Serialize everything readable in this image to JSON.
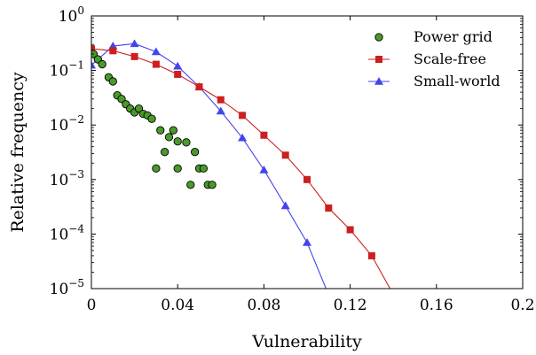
{
  "chart_data": {
    "type": "scatter",
    "title": "",
    "xlabel": "Vulnerability",
    "ylabel": "Relative frequency",
    "xlim": [
      0,
      0.2
    ],
    "ylim": [
      1e-05,
      1
    ],
    "yscale": "log",
    "grid": false,
    "legend_position": "top-right",
    "x_ticks": [
      {
        "value": 0,
        "label": "0"
      },
      {
        "value": 0.04,
        "label": "0.04"
      },
      {
        "value": 0.08,
        "label": "0.08"
      },
      {
        "value": 0.12,
        "label": "0.12"
      },
      {
        "value": 0.16,
        "label": "0.16"
      },
      {
        "value": 0.2,
        "label": "0.2"
      }
    ],
    "y_ticks": [
      {
        "value": 1e-05,
        "base": "10",
        "exp": "−5"
      },
      {
        "value": 0.0001,
        "base": "10",
        "exp": "−4"
      },
      {
        "value": 0.001,
        "base": "10",
        "exp": "−3"
      },
      {
        "value": 0.01,
        "base": "10",
        "exp": "−2"
      },
      {
        "value": 0.1,
        "base": "10",
        "exp": "−1"
      },
      {
        "value": 1,
        "base": "10",
        "exp": "0"
      }
    ],
    "series": [
      {
        "name": "Power grid",
        "style": "markers",
        "marker": "circle",
        "color": "#4a9a2a",
        "stroke": "#000000",
        "points": [
          [
            0.001,
            0.2
          ],
          [
            0.003,
            0.16
          ],
          [
            0.005,
            0.13
          ],
          [
            0.008,
            0.075
          ],
          [
            0.01,
            0.063
          ],
          [
            0.012,
            0.035
          ],
          [
            0.014,
            0.03
          ],
          [
            0.016,
            0.024
          ],
          [
            0.018,
            0.02
          ],
          [
            0.02,
            0.017
          ],
          [
            0.022,
            0.02
          ],
          [
            0.024,
            0.016
          ],
          [
            0.026,
            0.015
          ],
          [
            0.028,
            0.013
          ],
          [
            0.03,
            0.0016
          ],
          [
            0.032,
            0.008
          ],
          [
            0.034,
            0.0032
          ],
          [
            0.036,
            0.006
          ],
          [
            0.038,
            0.008
          ],
          [
            0.04,
            0.005
          ],
          [
            0.04,
            0.0016
          ],
          [
            0.044,
            0.0048
          ],
          [
            0.046,
            0.0008
          ],
          [
            0.048,
            0.0032
          ],
          [
            0.05,
            0.0016
          ],
          [
            0.052,
            0.0016
          ],
          [
            0.054,
            0.0008
          ],
          [
            0.056,
            0.0008
          ]
        ]
      },
      {
        "name": "Scale-free",
        "style": "line+markers",
        "marker": "square",
        "color": "#cc1f1f",
        "points": [
          [
            0,
            0.25
          ],
          [
            0.01,
            0.23
          ],
          [
            0.02,
            0.18
          ],
          [
            0.03,
            0.13
          ],
          [
            0.04,
            0.085
          ],
          [
            0.05,
            0.05
          ],
          [
            0.06,
            0.029
          ],
          [
            0.07,
            0.015
          ],
          [
            0.08,
            0.0065
          ],
          [
            0.09,
            0.0028
          ],
          [
            0.1,
            0.001
          ],
          [
            0.11,
            0.0003
          ],
          [
            0.12,
            0.00012
          ],
          [
            0.13,
            4e-05
          ],
          [
            0.1385,
            1e-05
          ]
        ]
      },
      {
        "name": "Small-world",
        "style": "line+markers",
        "marker": "triangle",
        "color": "#4444ee",
        "points": [
          [
            0,
            0.125
          ],
          [
            0.01,
            0.28
          ],
          [
            0.02,
            0.31
          ],
          [
            0.03,
            0.22
          ],
          [
            0.04,
            0.12
          ],
          [
            0.05,
            0.05
          ],
          [
            0.06,
            0.018
          ],
          [
            0.07,
            0.0058
          ],
          [
            0.08,
            0.0015
          ],
          [
            0.09,
            0.00033
          ],
          [
            0.1,
            7e-05
          ],
          [
            0.1088,
            1e-05
          ]
        ]
      }
    ]
  }
}
